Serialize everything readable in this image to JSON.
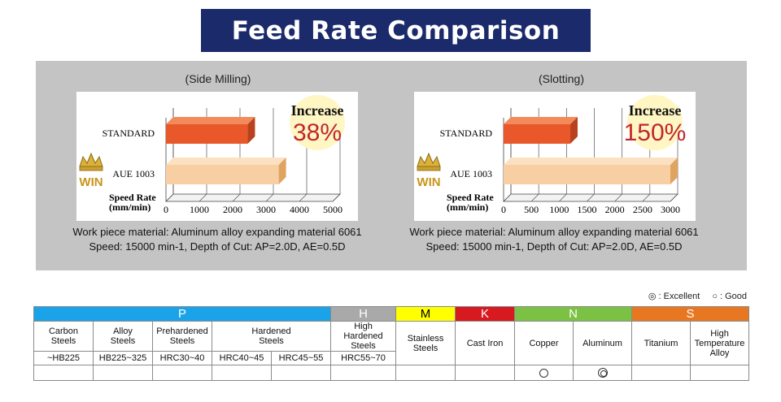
{
  "page_title": "Feed Rate Comparison",
  "chart_data": [
    {
      "type": "bar",
      "orientation": "horizontal",
      "title": "(Side Milling)",
      "categories": [
        "STANDARD",
        "AUE 1003"
      ],
      "values": [
        2450,
        3380
      ],
      "xlabel": "Speed Rate\n(mm/min)",
      "xlim": [
        0,
        5000
      ],
      "xticks": [
        "0",
        "1000",
        "2000",
        "3000",
        "4000",
        "5000"
      ],
      "tick_values": [
        0,
        1000,
        2000,
        3000,
        4000,
        5000
      ],
      "annotation_label": "Increase",
      "annotation_value": "38%",
      "badge_text": "WIN",
      "caption_line1": "Work piece material: Aluminum alloy expanding material 6061",
      "caption_line2": "Speed: 15000 min-1, Depth of Cut: AP=2.0D, AE=0.5D"
    },
    {
      "type": "bar",
      "orientation": "horizontal",
      "title": "(Slotting)",
      "categories": [
        "STANDARD",
        "AUE 1003"
      ],
      "values": [
        1200,
        3000
      ],
      "xlabel": "Speed Rate\n(mm/min)",
      "xlim": [
        0,
        3000
      ],
      "xticks": [
        "0",
        "500",
        "1000",
        "1500",
        "2000",
        "2500",
        "3000"
      ],
      "tick_values": [
        0,
        500,
        1000,
        1500,
        2000,
        2500,
        3000
      ],
      "annotation_label": "Increase",
      "annotation_value": "150%",
      "badge_text": "WIN",
      "caption_line1": "Work piece material: Aluminum alloy expanding material 6061",
      "caption_line2": "Speed: 15000 min-1, Depth of Cut: AP=2.0D, AE=0.5D"
    }
  ],
  "colors": {
    "banner": "#1b2a6b",
    "standard_bar": "#e8582b",
    "aue_bar": "#f8cfa2",
    "increase_text": "#c1272d",
    "group_p": "#1aa3e8",
    "group_h": "#a9a9a9",
    "group_m": "#ffff00",
    "group_k": "#d71920",
    "group_n": "#7bc143",
    "group_s": "#e87722"
  },
  "legend": {
    "excellent_symbol": "◎",
    "excellent_label": ": Excellent",
    "good_symbol": "○",
    "good_label": ": Good"
  },
  "table": {
    "groups": {
      "p": "P",
      "h": "H",
      "m": "M",
      "k": "K",
      "n": "N",
      "s": "S"
    },
    "materials": {
      "carbon": "Carbon Steels",
      "alloy": "Alloy Steels",
      "prehardened": "Prehardened Steels",
      "hardened": "Hardened Steels",
      "high_hardened": "High Hardened Steels",
      "stainless": "Stainless Steels",
      "cast_iron": "Cast Iron",
      "copper": "Copper",
      "aluminum": "Aluminum",
      "titanium": "Titanium",
      "high_temp": "High Temperature Alloy"
    },
    "hardness": {
      "carbon": "~HB225",
      "alloy": "HB225~325",
      "prehardened": "HRC30~40",
      "hardened_1": "HRC40~45",
      "hardened_2": "HRC45~55",
      "high_hardened": "HRC55~70"
    },
    "ratings": {
      "copper": "good",
      "aluminum": "excellent"
    }
  }
}
